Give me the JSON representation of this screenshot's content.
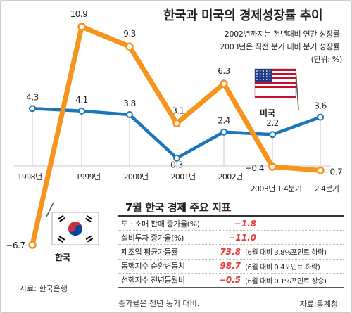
{
  "title": "한국과 미국의 경제성장률 추이",
  "notes": [
    "2002년까지는 전년대비 연간 성장률.",
    "2003년은 직전 분기 대비 분기 성장률.",
    "(단위: %)"
  ],
  "legend": {
    "korea": "한국",
    "usa": "미국"
  },
  "colors": {
    "korea": "#f7941d",
    "usa": "#1b75bb",
    "accent_red": "#e53a3a",
    "grid": "#c8c8c8"
  },
  "chart_data": {
    "type": "line",
    "title": "한국과 미국의 경제성장률 추이",
    "categories": [
      "1998년",
      "1999년",
      "2000년",
      "2001년",
      "2002년",
      "2003년 1·4분기",
      "2·4분기"
    ],
    "series": [
      {
        "name": "한국",
        "values": [
          -6.7,
          10.9,
          9.3,
          3.1,
          6.3,
          -0.4,
          -0.7
        ],
        "labels": [
          "−6.7",
          "10.9",
          "9.3",
          "3.1",
          "6.3",
          "−0.4",
          "−0.7"
        ]
      },
      {
        "name": "미국",
        "values": [
          4.3,
          4.1,
          3.8,
          0.3,
          2.4,
          2.2,
          3.6
        ],
        "labels": [
          "4.3",
          "4.1",
          "3.8",
          "0.3",
          "2.4",
          "2.2",
          "3.6"
        ]
      }
    ],
    "ylim": [
      -6.7,
      10.9
    ],
    "xlabel": "",
    "ylabel": "",
    "grid": false,
    "legend": "inline"
  },
  "table": {
    "title": "7월 한국 경제 주요 지표",
    "rows": [
      {
        "label": "도ㆍ소매 판매 증가율(%)",
        "value": "−1.8",
        "detail": ""
      },
      {
        "label": "설비투자 증가율(%)",
        "value": "−11.0",
        "detail": ""
      },
      {
        "label": "제조업 평균가동률",
        "value": "73.8",
        "detail": "(6월 대비 3.8%포인트 하락)"
      },
      {
        "label": "동행지수 순환변동치",
        "value": "98.7",
        "detail": "(6월 대비 0.4포인트 하락)"
      },
      {
        "label": "선행지수 전년동월비",
        "value": "−0.5",
        "detail": "(6월 대비 0.1%포인트 상승)"
      }
    ],
    "note": "증가율은 전년 동기 대비."
  },
  "sources": {
    "left": "자료: 한국은행",
    "right": "자료:통계청"
  },
  "flags": {
    "korea": "south-korea-flag-icon",
    "usa": "usa-flag-icon"
  }
}
